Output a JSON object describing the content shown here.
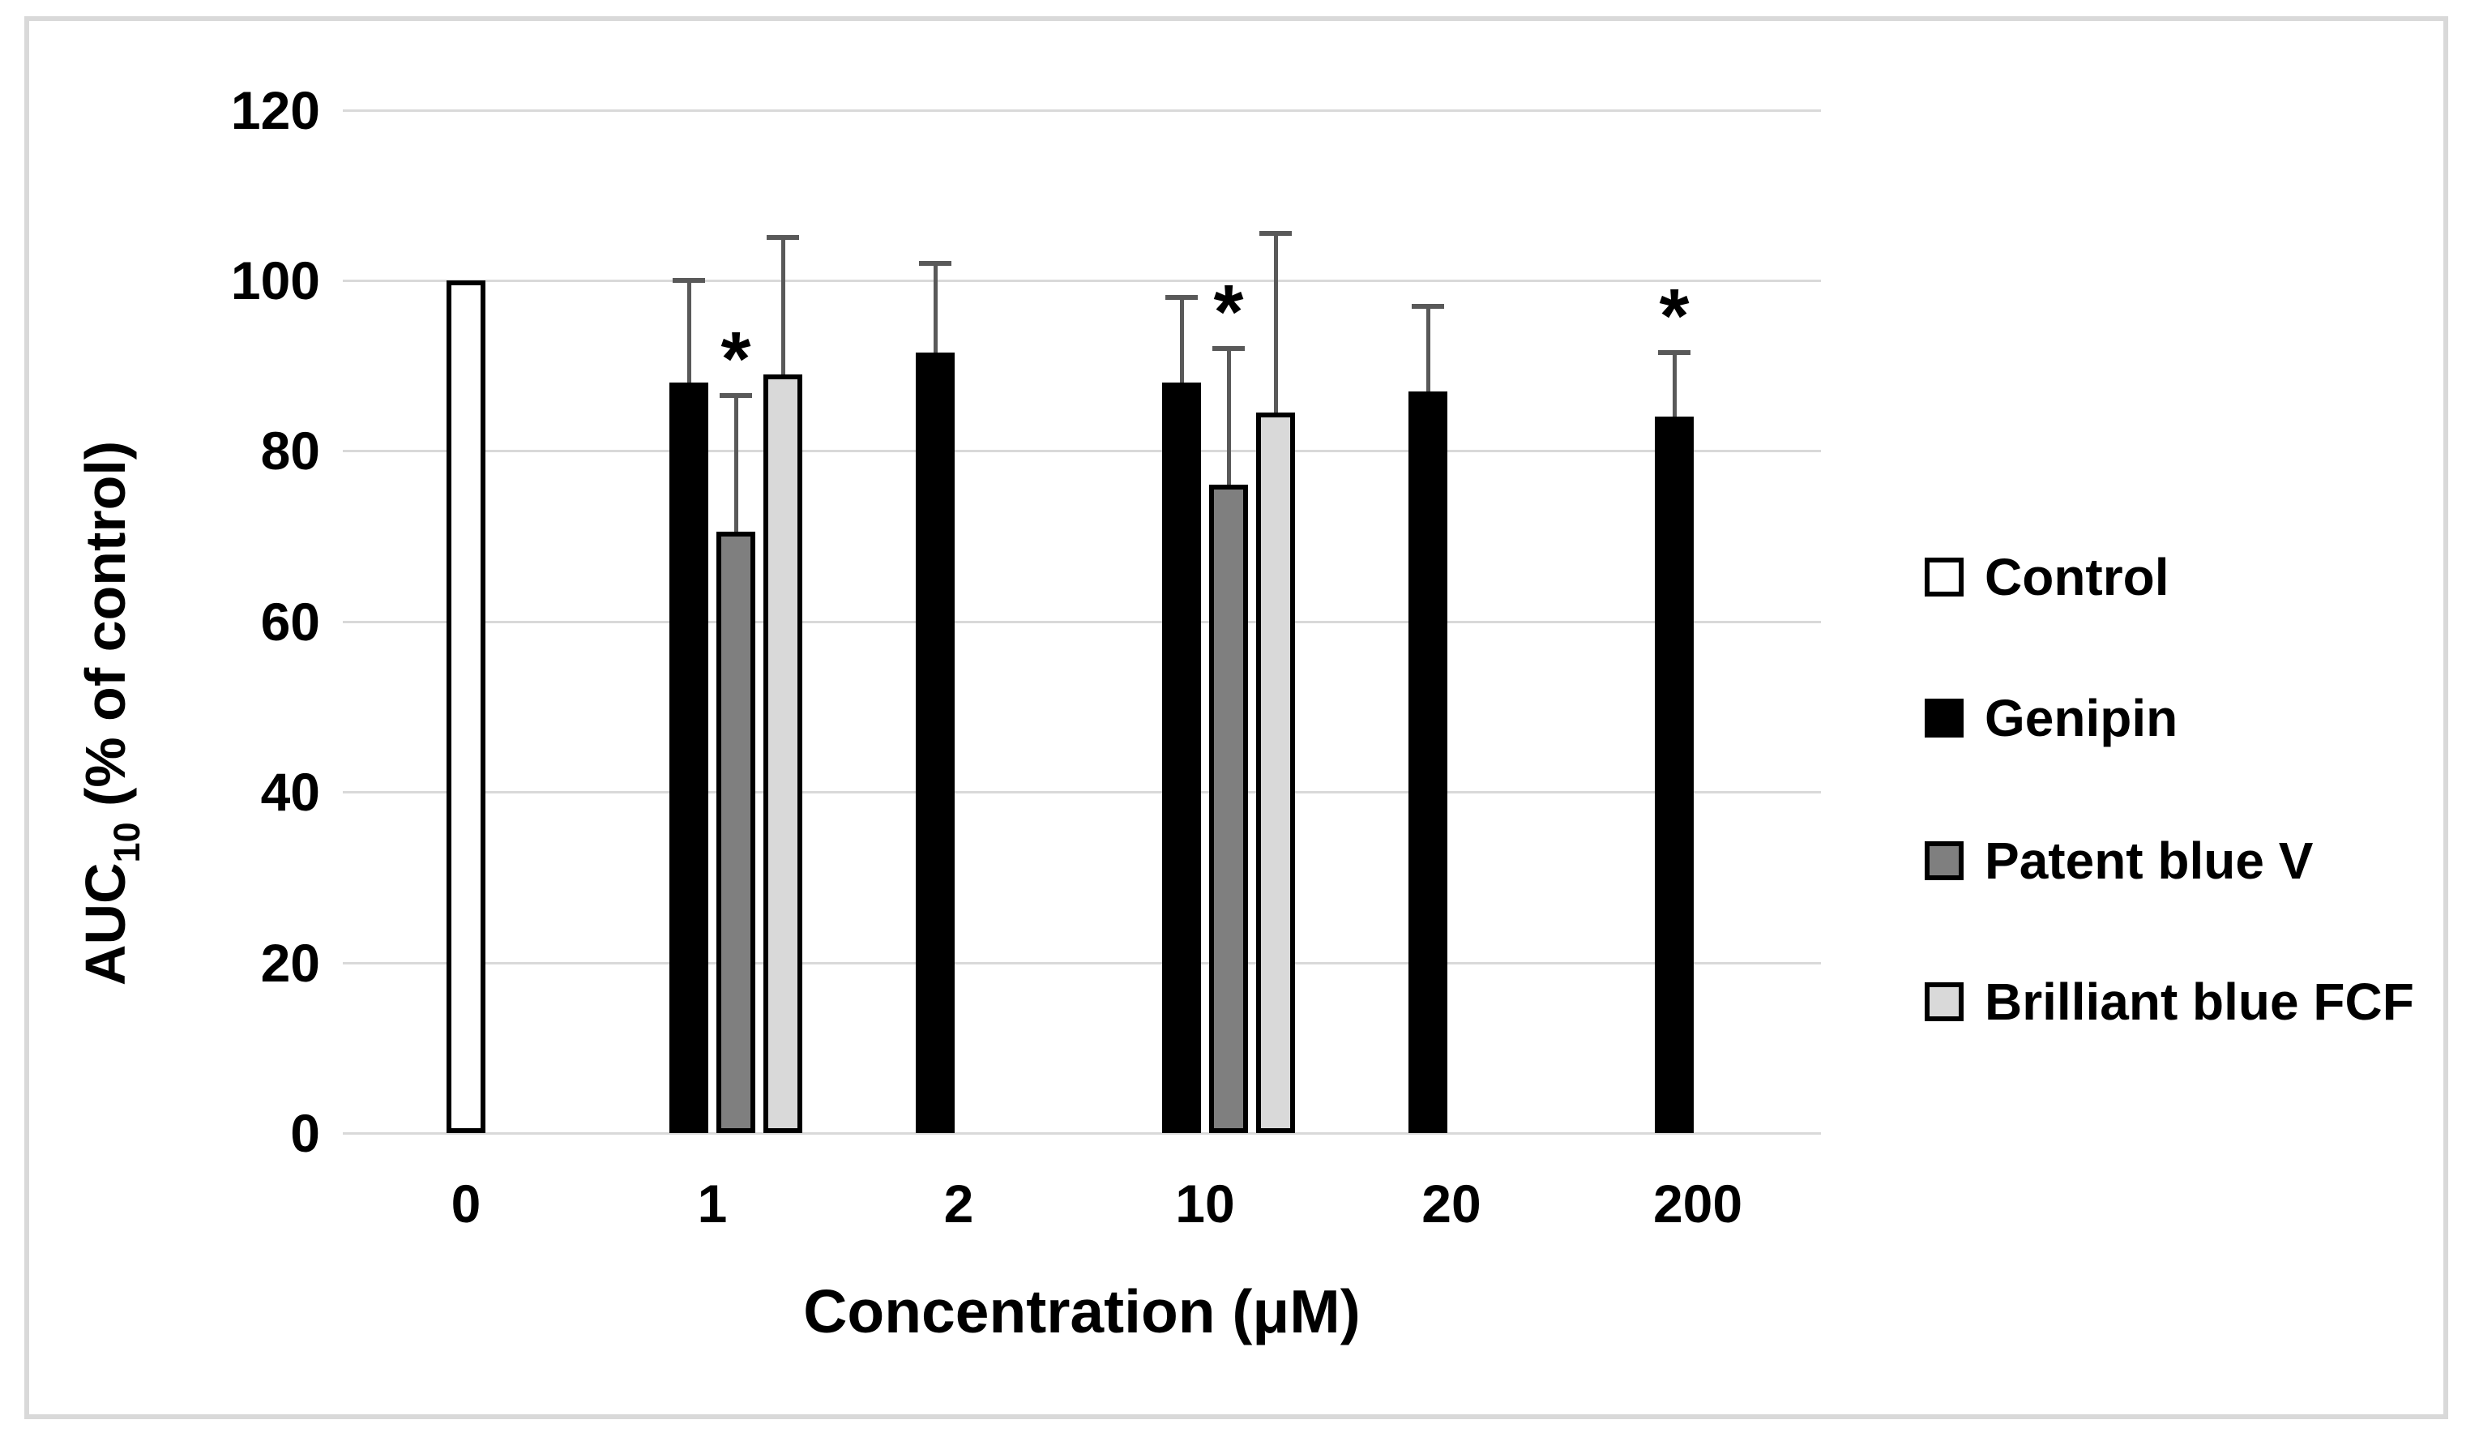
{
  "colors": {
    "grid": "#d9d9d9",
    "error_bar": "#595959",
    "frame": "#d9d9d9",
    "text": "#000000",
    "control_fill": "#ffffff",
    "genipin_fill": "#000000",
    "patent_blue_fill": "#7f7f7f",
    "brilliant_blue_fill": "#d9d9d9"
  },
  "chart_data": {
    "type": "bar",
    "title": "",
    "xlabel": "Concentration (μM)",
    "ylabel": "AUC10 (% of control)",
    "ylabel_parts": {
      "prefix": "AUC",
      "subscript": "10",
      "suffix": " (% of control)"
    },
    "ylim": [
      0,
      120
    ],
    "yticks": [
      120,
      100,
      80,
      60,
      40,
      20,
      0
    ],
    "categories": [
      "0",
      "1",
      "2",
      "10",
      "20",
      "200"
    ],
    "grid": true,
    "legend_position": "right",
    "significance_marker": "*",
    "series": [
      {
        "name": "Control",
        "fill": "#ffffff",
        "border": "#000000",
        "points": [
          {
            "x": "0",
            "value": 100
          }
        ]
      },
      {
        "name": "Genipin",
        "fill": "#000000",
        "border": "#000000",
        "points": [
          {
            "x": "1",
            "value": 88,
            "err": 12
          },
          {
            "x": "2",
            "value": 91.5,
            "err": 10.5
          },
          {
            "x": "10",
            "value": 88,
            "err": 10
          },
          {
            "x": "20",
            "value": 87,
            "err": 10
          },
          {
            "x": "200",
            "value": 84,
            "err": 7.5,
            "sig": true
          }
        ]
      },
      {
        "name": "Patent blue V",
        "fill": "#7f7f7f",
        "border": "#000000",
        "points": [
          {
            "x": "1",
            "value": 70.5,
            "err": 16,
            "sig": true
          },
          {
            "x": "10",
            "value": 76,
            "err": 16,
            "sig": true
          }
        ]
      },
      {
        "name": "Brilliant blue FCF",
        "fill": "#d9d9d9",
        "border": "#000000",
        "points": [
          {
            "x": "1",
            "value": 89,
            "err": 16
          },
          {
            "x": "10",
            "value": 84.5,
            "err": 21
          }
        ]
      }
    ]
  }
}
